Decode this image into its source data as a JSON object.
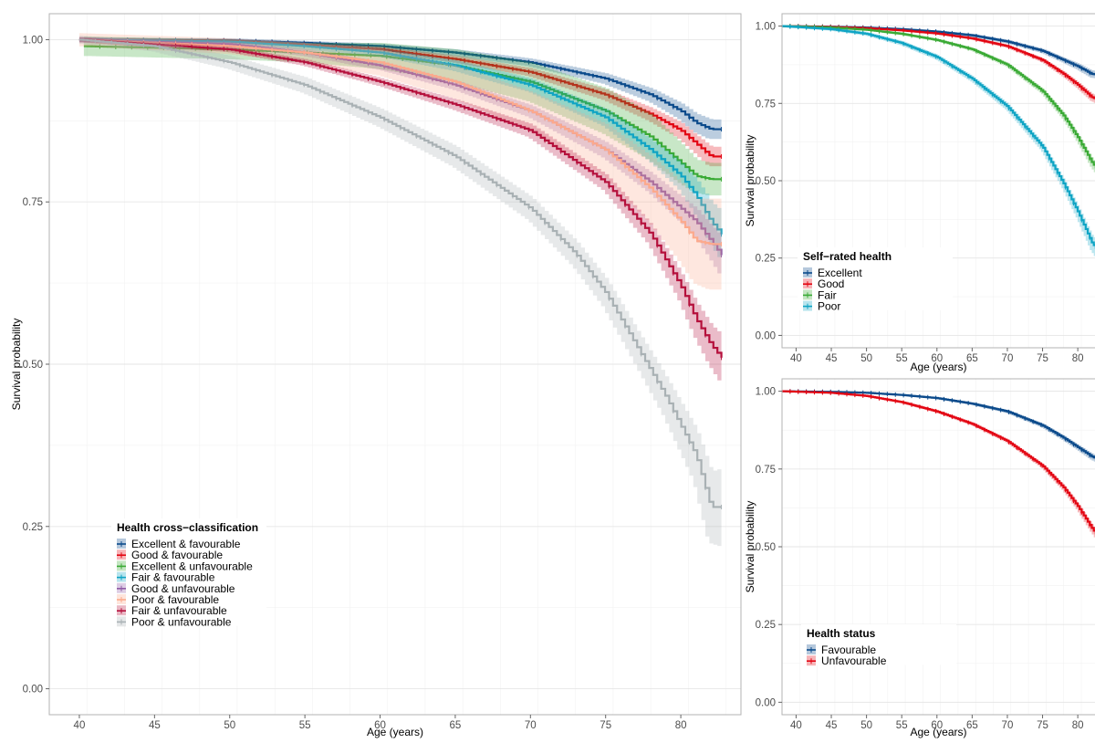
{
  "chart_data": [
    {
      "id": "main",
      "type": "line",
      "subtype": "kaplan-meier survival curves with confidence bands",
      "xlabel": "Age (years)",
      "ylabel": "Survival probability",
      "xlim": [
        38,
        84
      ],
      "ylim": [
        -0.04,
        1.04
      ],
      "xticks": [
        40,
        45,
        50,
        55,
        60,
        65,
        70,
        75,
        80
      ],
      "yticks": [
        0,
        0.25,
        0.5,
        0.75,
        1.0
      ],
      "yticklabels": [
        "0.00",
        "0.25",
        "0.50",
        "0.75",
        "1.00"
      ],
      "grid": true,
      "legend": {
        "title": "Health cross−classification",
        "placement": "bottom-left"
      },
      "series": [
        {
          "name": "Excellent & favourable",
          "color": "#0B4A8B",
          "x": [
            40,
            50,
            55,
            60,
            65,
            70,
            75,
            78,
            80,
            81,
            82,
            82.7
          ],
          "y": [
            1.0,
            0.999,
            0.995,
            0.99,
            0.98,
            0.965,
            0.94,
            0.915,
            0.89,
            0.872,
            0.862,
            0.862
          ],
          "ci": [
            0.003,
            0.003,
            0.003,
            0.004,
            0.005,
            0.006,
            0.008,
            0.01,
            0.012,
            0.014,
            0.015,
            0.015
          ]
        },
        {
          "name": "Good & favourable",
          "color": "#E30613",
          "x": [
            40,
            50,
            55,
            60,
            65,
            70,
            75,
            78,
            80,
            81,
            82,
            82.7
          ],
          "y": [
            1.0,
            0.998,
            0.992,
            0.985,
            0.97,
            0.95,
            0.915,
            0.885,
            0.86,
            0.84,
            0.82,
            0.82
          ],
          "ci": [
            0.003,
            0.003,
            0.003,
            0.004,
            0.005,
            0.006,
            0.008,
            0.01,
            0.012,
            0.013,
            0.015,
            0.015
          ]
        },
        {
          "name": "Excellent & unfavourable",
          "color": "#3AAA35",
          "x": [
            40.3,
            50,
            55,
            60,
            65,
            70,
            75,
            78,
            80,
            81,
            82,
            82.7
          ],
          "y": [
            0.99,
            0.985,
            0.98,
            0.975,
            0.96,
            0.935,
            0.89,
            0.85,
            0.81,
            0.79,
            0.785,
            0.785
          ],
          "ci": [
            0.015,
            0.015,
            0.015,
            0.02,
            0.025,
            0.03,
            0.035,
            0.035,
            0.03,
            0.025,
            0.025,
            0.025
          ]
        },
        {
          "name": "Fair & favourable",
          "color": "#0FA4C4",
          "x": [
            40,
            50,
            55,
            60,
            65,
            70,
            75,
            78,
            80,
            81,
            82,
            82.7
          ],
          "y": [
            1.0,
            0.997,
            0.99,
            0.98,
            0.96,
            0.93,
            0.88,
            0.83,
            0.79,
            0.76,
            0.72,
            0.7
          ],
          "ci": [
            0.004,
            0.004,
            0.005,
            0.006,
            0.008,
            0.01,
            0.013,
            0.016,
            0.02,
            0.025,
            0.03,
            0.035
          ]
        },
        {
          "name": "Good & unfavourable",
          "color": "#8E5BA6",
          "x": [
            40,
            50,
            55,
            60,
            65,
            70,
            75,
            78,
            80,
            81,
            82,
            82.7
          ],
          "y": [
            1.0,
            0.993,
            0.98,
            0.96,
            0.93,
            0.89,
            0.83,
            0.78,
            0.74,
            0.72,
            0.69,
            0.668
          ],
          "ci": [
            0.004,
            0.004,
            0.005,
            0.006,
            0.007,
            0.009,
            0.012,
            0.015,
            0.018,
            0.02,
            0.024,
            0.028
          ]
        },
        {
          "name": "Poor & favourable",
          "color": "#FCA98C",
          "x": [
            40,
            50,
            55,
            60,
            65,
            70,
            75,
            78,
            80,
            81,
            82,
            82.7
          ],
          "y": [
            1.0,
            0.99,
            0.98,
            0.965,
            0.935,
            0.89,
            0.83,
            0.77,
            0.72,
            0.69,
            0.685,
            0.685
          ],
          "ci": [
            0.01,
            0.012,
            0.015,
            0.02,
            0.025,
            0.03,
            0.04,
            0.05,
            0.06,
            0.065,
            0.07,
            0.07
          ]
        },
        {
          "name": "Fair & unfavourable",
          "color": "#B5103C",
          "x": [
            40,
            50,
            55,
            60,
            65,
            70,
            75,
            78,
            80,
            81,
            82,
            82.7
          ],
          "y": [
            1.0,
            0.985,
            0.965,
            0.935,
            0.9,
            0.86,
            0.78,
            0.7,
            0.62,
            0.57,
            0.53,
            0.51
          ],
          "ci": [
            0.004,
            0.004,
            0.005,
            0.006,
            0.008,
            0.01,
            0.012,
            0.015,
            0.02,
            0.025,
            0.03,
            0.035
          ]
        },
        {
          "name": "Poor & unfavourable",
          "color": "#A9B1B4",
          "x": [
            40,
            45,
            50,
            55,
            60,
            65,
            70,
            73,
            75,
            77,
            79,
            81,
            82,
            82.7
          ],
          "y": [
            1.0,
            0.99,
            0.965,
            0.93,
            0.88,
            0.82,
            0.74,
            0.67,
            0.61,
            0.53,
            0.45,
            0.36,
            0.28,
            0.28
          ],
          "ci": [
            0.006,
            0.008,
            0.01,
            0.012,
            0.014,
            0.016,
            0.018,
            0.02,
            0.022,
            0.025,
            0.03,
            0.04,
            0.055,
            0.06
          ]
        }
      ]
    },
    {
      "id": "self-rated",
      "type": "line",
      "subtype": "kaplan-meier survival curves with confidence bands",
      "xlabel": "Age (years)",
      "ylabel": "Survival probability",
      "xlim": [
        38,
        84
      ],
      "ylim": [
        -0.04,
        1.04
      ],
      "xticks": [
        40,
        45,
        50,
        55,
        60,
        65,
        70,
        75,
        80
      ],
      "yticks": [
        0,
        0.25,
        0.5,
        0.75,
        1.0
      ],
      "yticklabels": [
        "0.00",
        "0.25",
        "0.50",
        "0.75",
        "1.00"
      ],
      "grid": true,
      "legend": {
        "title": "Self−rated health",
        "placement": "bottom-left"
      },
      "series": [
        {
          "name": "Excellent",
          "color": "#0B4A8B",
          "x": [
            38,
            45,
            50,
            55,
            60,
            65,
            70,
            75,
            78,
            80,
            82,
            84
          ],
          "y": [
            1.0,
            0.998,
            0.995,
            0.99,
            0.982,
            0.97,
            0.95,
            0.92,
            0.89,
            0.87,
            0.845,
            0.84
          ],
          "ci": [
            0.002,
            0.002,
            0.003,
            0.003,
            0.004,
            0.005,
            0.006,
            0.007,
            0.008,
            0.01,
            0.012,
            0.012
          ]
        },
        {
          "name": "Good",
          "color": "#E30613",
          "x": [
            38,
            45,
            50,
            55,
            60,
            65,
            70,
            75,
            78,
            80,
            82,
            84
          ],
          "y": [
            1.0,
            0.997,
            0.993,
            0.986,
            0.976,
            0.96,
            0.935,
            0.89,
            0.845,
            0.81,
            0.77,
            0.75
          ],
          "ci": [
            0.002,
            0.002,
            0.002,
            0.003,
            0.003,
            0.004,
            0.005,
            0.006,
            0.008,
            0.01,
            0.012,
            0.013
          ]
        },
        {
          "name": "Fair",
          "color": "#3AAA35",
          "x": [
            38,
            45,
            50,
            55,
            60,
            65,
            70,
            75,
            78,
            80,
            82,
            84
          ],
          "y": [
            1.0,
            0.995,
            0.988,
            0.975,
            0.955,
            0.925,
            0.875,
            0.79,
            0.71,
            0.64,
            0.56,
            0.5
          ],
          "ci": [
            0.002,
            0.003,
            0.003,
            0.004,
            0.004,
            0.005,
            0.006,
            0.008,
            0.01,
            0.012,
            0.015,
            0.017
          ]
        },
        {
          "name": "Poor",
          "color": "#0FA4C4",
          "x": [
            38,
            45,
            50,
            55,
            60,
            65,
            70,
            75,
            78,
            80,
            82,
            84
          ],
          "y": [
            1.0,
            0.99,
            0.975,
            0.945,
            0.9,
            0.83,
            0.74,
            0.61,
            0.49,
            0.4,
            0.3,
            0.24
          ],
          "ci": [
            0.004,
            0.005,
            0.006,
            0.007,
            0.008,
            0.009,
            0.011,
            0.013,
            0.016,
            0.02,
            0.025,
            0.03
          ]
        }
      ]
    },
    {
      "id": "health-status",
      "type": "line",
      "subtype": "kaplan-meier survival curves with confidence bands",
      "xlabel": "Age (years)",
      "ylabel": "Survival probability",
      "xlim": [
        38,
        84
      ],
      "ylim": [
        -0.04,
        1.04
      ],
      "xticks": [
        40,
        45,
        50,
        55,
        60,
        65,
        70,
        75,
        80
      ],
      "yticks": [
        0,
        0.25,
        0.5,
        0.75,
        1.0
      ],
      "yticklabels": [
        "0.00",
        "0.25",
        "0.50",
        "0.75",
        "1.00"
      ],
      "grid": true,
      "legend": {
        "title": "Health status",
        "placement": "bottom-left"
      },
      "series": [
        {
          "name": "Favourable",
          "color": "#0B4A8B",
          "x": [
            38,
            45,
            50,
            55,
            60,
            65,
            70,
            75,
            78,
            80,
            82,
            84
          ],
          "y": [
            1.0,
            0.998,
            0.995,
            0.988,
            0.978,
            0.96,
            0.935,
            0.89,
            0.85,
            0.82,
            0.79,
            0.77
          ],
          "ci": [
            0.002,
            0.002,
            0.002,
            0.003,
            0.003,
            0.004,
            0.005,
            0.006,
            0.007,
            0.008,
            0.01,
            0.011
          ]
        },
        {
          "name": "Unfavourable",
          "color": "#E30613",
          "x": [
            38,
            45,
            50,
            55,
            60,
            65,
            70,
            75,
            78,
            80,
            82,
            84
          ],
          "y": [
            1.0,
            0.995,
            0.985,
            0.965,
            0.935,
            0.895,
            0.84,
            0.76,
            0.69,
            0.63,
            0.56,
            0.5
          ],
          "ci": [
            0.002,
            0.002,
            0.003,
            0.003,
            0.004,
            0.004,
            0.005,
            0.006,
            0.008,
            0.01,
            0.012,
            0.014
          ]
        }
      ]
    }
  ]
}
